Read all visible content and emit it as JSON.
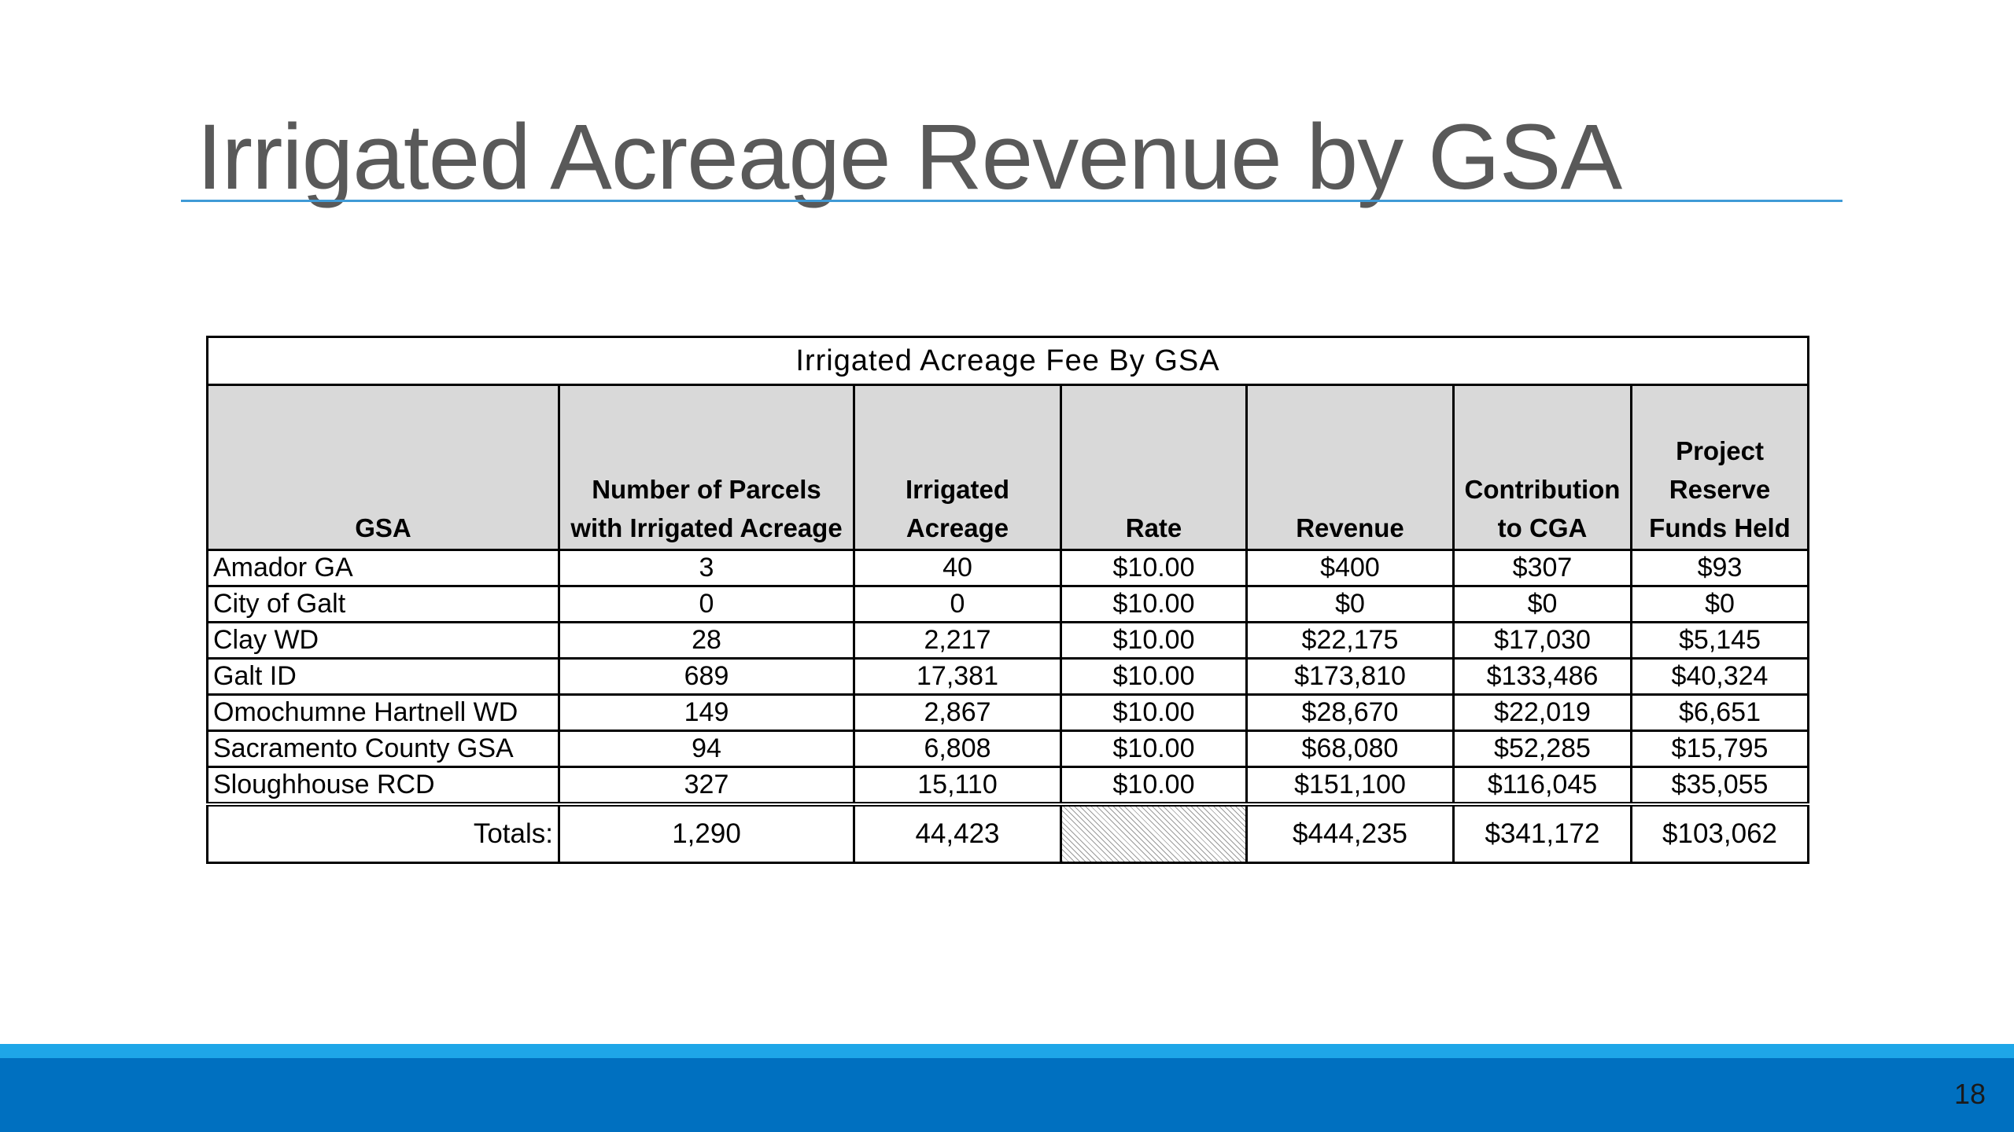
{
  "slide": {
    "title": "Irrigated Acreage Revenue by GSA",
    "page_number": "18"
  },
  "table": {
    "caption": "Irrigated Acreage Fee By GSA",
    "headers": {
      "gsa": "GSA",
      "parcels": "Number of Parcels with Irrigated Acreage",
      "acreage": "Irrigated Acreage",
      "rate": "Rate",
      "revenue": "Revenue",
      "contribution": "Contribution to CGA",
      "reserve": "Project Reserve Funds Held"
    },
    "rows": [
      {
        "gsa": "Amador GA",
        "parcels": "3",
        "acreage": "40",
        "rate": "$10.00",
        "revenue": "$400",
        "contribution": "$307",
        "reserve": "$93"
      },
      {
        "gsa": "City of Galt",
        "parcels": "0",
        "acreage": "0",
        "rate": "$10.00",
        "revenue": "$0",
        "contribution": "$0",
        "reserve": "$0"
      },
      {
        "gsa": "Clay WD",
        "parcels": "28",
        "acreage": "2,217",
        "rate": "$10.00",
        "revenue": "$22,175",
        "contribution": "$17,030",
        "reserve": "$5,145"
      },
      {
        "gsa": "Galt ID",
        "parcels": "689",
        "acreage": "17,381",
        "rate": "$10.00",
        "revenue": "$173,810",
        "contribution": "$133,486",
        "reserve": "$40,324"
      },
      {
        "gsa": "Omochumne Hartnell WD",
        "parcels": "149",
        "acreage": "2,867",
        "rate": "$10.00",
        "revenue": "$28,670",
        "contribution": "$22,019",
        "reserve": "$6,651"
      },
      {
        "gsa": "Sacramento County GSA",
        "parcels": "94",
        "acreage": "6,808",
        "rate": "$10.00",
        "revenue": "$68,080",
        "contribution": "$52,285",
        "reserve": "$15,795"
      },
      {
        "gsa": "Sloughhouse RCD",
        "parcels": "327",
        "acreage": "15,110",
        "rate": "$10.00",
        "revenue": "$151,100",
        "contribution": "$116,045",
        "reserve": "$35,055"
      }
    ],
    "totals": {
      "label": "Totals:",
      "parcels": "1,290",
      "acreage": "44,423",
      "revenue": "$444,235",
      "contribution": "$341,172",
      "reserve": "$103,062"
    }
  },
  "colors": {
    "title_text": "#595959",
    "title_rule": "#3f9ad6",
    "header_fill": "#d9d9d9",
    "footer_stripe": "#1ea6e8",
    "footer_bar": "#0070c0"
  }
}
